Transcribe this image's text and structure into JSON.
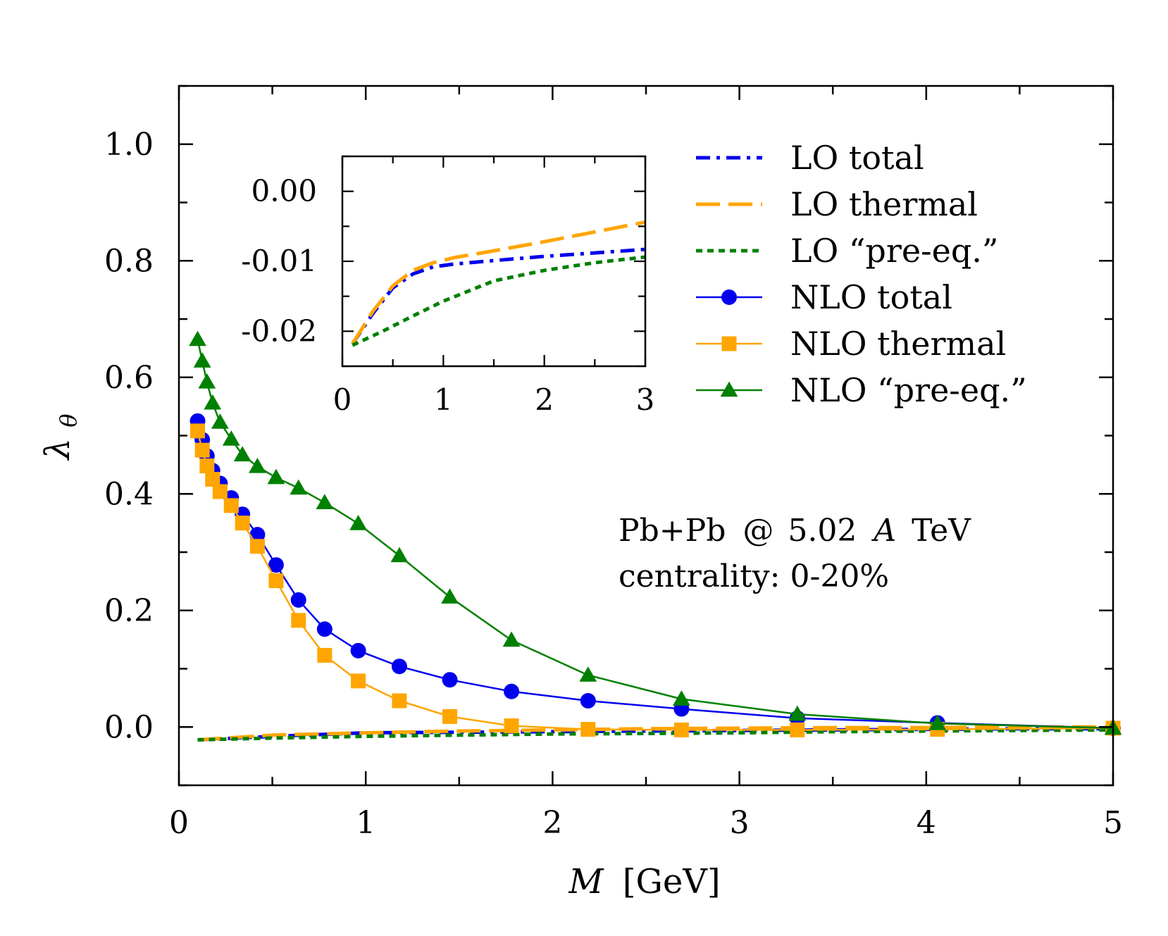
{
  "chart_data": {
    "type": "line",
    "main": {
      "xlabel": "M [GeV]",
      "xlabel_var": "M",
      "xlabel_unit": "[GeV]",
      "ylabel": "λθ",
      "ylabel_base": "λ",
      "ylabel_sub": "θ",
      "xlim": [
        0,
        5
      ],
      "ylim": [
        -0.1,
        1.1
      ],
      "xticks": [
        0,
        1,
        2,
        3,
        4,
        5
      ],
      "xtick_labels": [
        "0",
        "1",
        "2",
        "3",
        "4",
        "5"
      ],
      "yticks": [
        0.0,
        0.2,
        0.4,
        0.6,
        0.8,
        1.0
      ],
      "ytick_labels": [
        "0.0",
        "0.2",
        "0.4",
        "0.6",
        "0.8",
        "1.0"
      ],
      "series": [
        {
          "name": "LO total",
          "color": "#0000ee",
          "dash": "dashdot",
          "marker": "none",
          "x": [
            0.1,
            0.5,
            1.0,
            1.5,
            2.0,
            2.5,
            3.0,
            3.5,
            4.0,
            4.5,
            5.0
          ],
          "y": [
            -0.022,
            -0.016,
            -0.01,
            -0.009,
            -0.008,
            -0.007,
            -0.006,
            -0.005,
            -0.004,
            -0.003,
            -0.003
          ]
        },
        {
          "name": "LO thermal",
          "color": "#ffa500",
          "dash": "longdash",
          "marker": "none",
          "x": [
            0.1,
            0.5,
            1.0,
            1.5,
            2.0,
            2.5,
            3.0,
            3.5,
            4.0,
            4.5,
            5.0
          ],
          "y": [
            -0.022,
            -0.014,
            -0.01,
            -0.007,
            -0.005,
            -0.003,
            -0.002,
            -0.001,
            -0.001,
            0.0,
            0.0
          ]
        },
        {
          "name": "LO “pre-eq.”",
          "color": "#008000",
          "dash": "dotted",
          "marker": "none",
          "x": [
            0.1,
            0.5,
            1.0,
            1.5,
            2.0,
            2.5,
            3.0,
            3.5,
            4.0,
            4.5,
            5.0
          ],
          "y": [
            -0.022,
            -0.019,
            -0.016,
            -0.014,
            -0.012,
            -0.011,
            -0.01,
            -0.008,
            -0.007,
            -0.006,
            -0.005
          ]
        },
        {
          "name": "NLO total",
          "color": "#0000ee",
          "dash": "solid",
          "marker": "circle",
          "x": [
            0.1,
            0.125,
            0.15,
            0.18,
            0.22,
            0.28,
            0.34,
            0.42,
            0.52,
            0.64,
            0.78,
            0.96,
            1.18,
            1.45,
            1.78,
            2.19,
            2.69,
            3.31,
            4.06,
            5.0
          ],
          "y": [
            0.525,
            0.493,
            0.465,
            0.44,
            0.418,
            0.393,
            0.365,
            0.33,
            0.278,
            0.218,
            0.168,
            0.131,
            0.104,
            0.081,
            0.061,
            0.045,
            0.031,
            0.015,
            0.007,
            -0.002
          ]
        },
        {
          "name": "NLO thermal",
          "color": "#ffa500",
          "dash": "solid",
          "marker": "square",
          "x": [
            0.1,
            0.125,
            0.15,
            0.18,
            0.22,
            0.28,
            0.34,
            0.42,
            0.52,
            0.64,
            0.78,
            0.96,
            1.18,
            1.45,
            1.78,
            2.19,
            2.69,
            3.31,
            4.06,
            5.0
          ],
          "y": [
            0.508,
            0.475,
            0.448,
            0.425,
            0.404,
            0.38,
            0.35,
            0.31,
            0.251,
            0.183,
            0.123,
            0.079,
            0.045,
            0.018,
            0.002,
            -0.004,
            -0.005,
            -0.005,
            -0.004,
            -0.002
          ]
        },
        {
          "name": "NLO “pre-eq.”",
          "color": "#008000",
          "dash": "solid",
          "marker": "triangle",
          "x": [
            0.1,
            0.125,
            0.15,
            0.18,
            0.22,
            0.28,
            0.34,
            0.42,
            0.52,
            0.64,
            0.78,
            0.96,
            1.18,
            1.45,
            1.78,
            2.19,
            2.69,
            3.31,
            4.06,
            5.0
          ],
          "y": [
            0.665,
            0.628,
            0.592,
            0.556,
            0.523,
            0.494,
            0.467,
            0.447,
            0.428,
            0.41,
            0.385,
            0.349,
            0.294,
            0.223,
            0.149,
            0.089,
            0.048,
            0.022,
            0.006,
            -0.002
          ]
        }
      ]
    },
    "inset": {
      "xlim": [
        0,
        3
      ],
      "ylim": [
        -0.025,
        0.005
      ],
      "xticks": [
        0,
        1,
        2,
        3
      ],
      "xtick_labels": [
        "0",
        "1",
        "2",
        "3"
      ],
      "yticks": [
        -0.02,
        -0.01,
        0.0
      ],
      "ytick_labels": [
        "-0.02",
        "-0.01",
        "0.00"
      ],
      "series": [
        {
          "name": "LO total",
          "color": "#0000ee",
          "dash": "dashdot",
          "x": [
            0.1,
            0.3,
            0.5,
            0.7,
            0.9,
            1.1,
            1.5,
            2.0,
            2.5,
            3.0
          ],
          "y": [
            -0.0218,
            -0.0175,
            -0.0138,
            -0.0118,
            -0.0108,
            -0.0104,
            -0.0099,
            -0.0093,
            -0.0088,
            -0.0083
          ]
        },
        {
          "name": "LO thermal",
          "color": "#ffa500",
          "dash": "longdash",
          "x": [
            0.1,
            0.3,
            0.5,
            0.7,
            0.9,
            1.1,
            1.5,
            2.0,
            2.5,
            3.0
          ],
          "y": [
            -0.0218,
            -0.0172,
            -0.0135,
            -0.0113,
            -0.0102,
            -0.0095,
            -0.0085,
            -0.0072,
            -0.0058,
            -0.0044
          ]
        },
        {
          "name": "LO “pre-eq.”",
          "color": "#008000",
          "dash": "dotted",
          "x": [
            0.1,
            0.4,
            0.7,
            1.0,
            1.5,
            2.0,
            2.5,
            3.0
          ],
          "y": [
            -0.022,
            -0.02,
            -0.0178,
            -0.0157,
            -0.0128,
            -0.0113,
            -0.0102,
            -0.0094
          ]
        }
      ]
    },
    "annotations": [
      "Pb+Pb @ 5.02 A TeV",
      "centrality:  0-20%"
    ],
    "annotation_parts": {
      "system": "Pb+Pb",
      "at": "@",
      "energy": "5.02",
      "per": "A",
      "unit": "TeV"
    },
    "legend_position": "top-right",
    "grid": false
  }
}
